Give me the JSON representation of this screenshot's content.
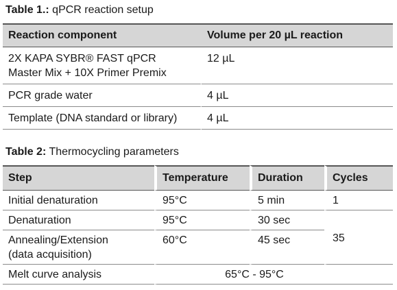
{
  "table1": {
    "caption_bold": "Table 1.:",
    "caption_text": " qPCR reaction setup",
    "headers": [
      "Reaction component",
      "Volume per 20 µL reaction"
    ],
    "rows": [
      {
        "component_line1": "2X KAPA SYBR® FAST qPCR",
        "component_line2": "Master Mix + 10X Primer Premix",
        "volume": "12 µL"
      },
      {
        "component": "PCR grade water",
        "volume": "4 µL"
      },
      {
        "component": "Template (DNA standard or library)",
        "volume": "4 µL"
      }
    ]
  },
  "table2": {
    "caption_bold": "Table 2:",
    "caption_text": " Thermocycling parameters",
    "headers": [
      "Step",
      "Temperature",
      "Duration",
      "Cycles"
    ],
    "rows": [
      {
        "step": "Initial denaturation",
        "temperature": "95°C",
        "duration": "5 min",
        "cycles": "1"
      },
      {
        "step": "Denaturation",
        "temperature": "95°C",
        "duration": "30 sec"
      },
      {
        "step_line1": "Annealing/Extension",
        "step_line2": "(data acquisition)",
        "temperature": "60°C",
        "duration": "45 sec",
        "cycles": "35"
      },
      {
        "step": "Melt curve analysis",
        "range": "65°C - 95°C"
      }
    ]
  }
}
